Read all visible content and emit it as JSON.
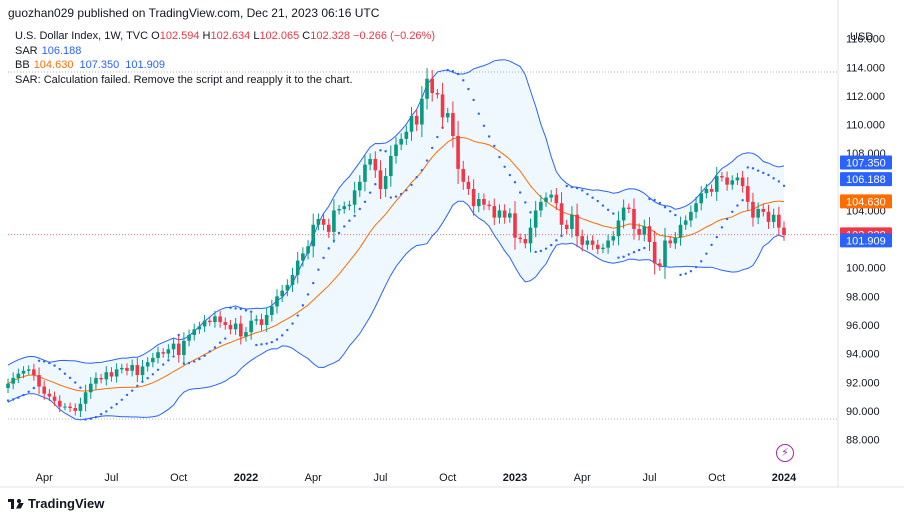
{
  "header": {
    "publisher": "guozhan029 published on TradingView.com, Dec 21, 2023 06:16 UTC"
  },
  "legend": {
    "symbol": "U.S. Dollar Index, 1W, TVC",
    "o_label": "O",
    "o": "102.594",
    "h_label": "H",
    "h": "102.634",
    "l_label": "L",
    "l": "102.065",
    "c_label": "C",
    "c": "102.328",
    "change": "−0.266 (−0.26%)",
    "sar_label": "SAR",
    "sar": "106.188",
    "bb_label": "BB",
    "bb_basis": "104.630",
    "bb_upper": "107.350",
    "bb_lower": "101.909",
    "error": "SAR: Calculation failed. Remove the script and reapply it to the chart."
  },
  "footer": {
    "brand": "TradingView"
  },
  "chart_data": {
    "type": "candlestick",
    "currency": "USD",
    "ylim": [
      86.5,
      117.3
    ],
    "y_ticks": [
      "88.000",
      "90.000",
      "92.000",
      "94.000",
      "96.000",
      "98.000",
      "100.000",
      "102.000",
      "104.000",
      "106.000",
      "108.000",
      "110.000",
      "112.000",
      "114.000",
      "116.000"
    ],
    "x_ticks": [
      {
        "label": "Apr",
        "i": 7
      },
      {
        "label": "Jul",
        "i": 20
      },
      {
        "label": "Oct",
        "i": 33
      },
      {
        "label": "2022",
        "i": 46
      },
      {
        "label": "Apr",
        "i": 59
      },
      {
        "label": "Jul",
        "i": 72
      },
      {
        "label": "Oct",
        "i": 85
      },
      {
        "label": "2023",
        "i": 98
      },
      {
        "label": "Apr",
        "i": 111
      },
      {
        "label": "Jul",
        "i": 124
      },
      {
        "label": "Oct",
        "i": 137
      },
      {
        "label": "2024",
        "i": 150
      }
    ],
    "closes": [
      91.9,
      92.3,
      92.6,
      92.8,
      92.9,
      92.5,
      91.7,
      91.2,
      91.0,
      90.7,
      90.3,
      90.3,
      90.2,
      90.0,
      90.5,
      91.3,
      91.9,
      92.3,
      92.2,
      92.7,
      92.4,
      92.9,
      93.0,
      92.8,
      93.2,
      92.5,
      93.1,
      93.4,
      93.7,
      94.1,
      94.0,
      94.3,
      94.7,
      93.9,
      94.9,
      95.3,
      95.7,
      95.9,
      96.3,
      96.2,
      96.6,
      96.2,
      96.0,
      95.7,
      96.1,
      95.2,
      95.5,
      96.3,
      96.4,
      96.0,
      96.7,
      97.3,
      98.0,
      98.4,
      98.8,
      99.5,
      100.5,
      101.0,
      101.5,
      103.0,
      103.4,
      103.0,
      102.5,
      104.0,
      104.1,
      104.3,
      104.4,
      105.4,
      106.0,
      107.2,
      107.6,
      106.8,
      105.5,
      106.4,
      107.8,
      108.6,
      109.0,
      109.5,
      110.6,
      110.0,
      111.8,
      113.2,
      112.2,
      112.1,
      110.5,
      110.8,
      109.2,
      106.9,
      106.0,
      105.5,
      104.3,
      104.8,
      104.4,
      104.3,
      103.5,
      104.0,
      103.5,
      103.8,
      102.1,
      102.0,
      101.7,
      102.8,
      104.0,
      104.6,
      104.9,
      105.1,
      104.5,
      103.0,
      102.7,
      103.7,
      102.2,
      101.6,
      101.9,
      101.6,
      101.3,
      101.4,
      101.9,
      102.2,
      103.3,
      104.2,
      104.1,
      102.7,
      102.3,
      102.9,
      101.8,
      100.3,
      100.1,
      101.9,
      101.7,
      102.1,
      103.0,
      103.3,
      103.9,
      104.5,
      105.2,
      105.5,
      105.3,
      106.4,
      106.3,
      105.8,
      106.1,
      106.3,
      105.7,
      104.6,
      103.5,
      104.1,
      103.9,
      103.2,
      103.7,
      102.8,
      102.3
    ]
  }
}
